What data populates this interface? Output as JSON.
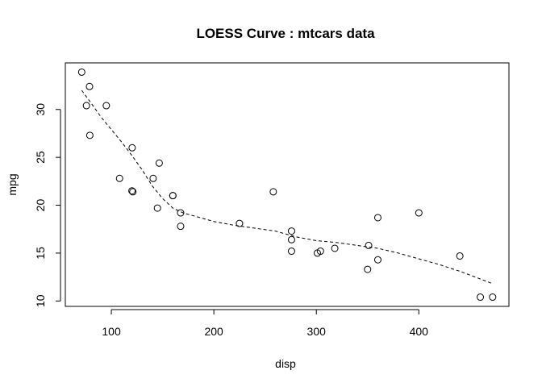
{
  "chart_data": {
    "type": "scatter",
    "title": "LOESS Curve : mtcars data",
    "xlabel": "disp",
    "ylabel": "mpg",
    "xlim": [
      55.1,
      487.9
    ],
    "ylim": [
      9.436,
      34.864
    ],
    "xticks": [
      100,
      200,
      300,
      400
    ],
    "yticks": [
      10,
      15,
      20,
      25,
      30
    ],
    "grid": false,
    "points": [
      {
        "x": 160,
        "y": 21.0
      },
      {
        "x": 160,
        "y": 21.0
      },
      {
        "x": 108,
        "y": 22.8
      },
      {
        "x": 258,
        "y": 21.4
      },
      {
        "x": 360,
        "y": 18.7
      },
      {
        "x": 225,
        "y": 18.1
      },
      {
        "x": 360,
        "y": 14.3
      },
      {
        "x": 146.7,
        "y": 24.4
      },
      {
        "x": 140.8,
        "y": 22.8
      },
      {
        "x": 167.6,
        "y": 19.2
      },
      {
        "x": 167.6,
        "y": 17.8
      },
      {
        "x": 275.8,
        "y": 16.4
      },
      {
        "x": 275.8,
        "y": 17.3
      },
      {
        "x": 275.8,
        "y": 15.2
      },
      {
        "x": 472,
        "y": 10.4
      },
      {
        "x": 460,
        "y": 10.4
      },
      {
        "x": 440,
        "y": 14.7
      },
      {
        "x": 78.7,
        "y": 32.4
      },
      {
        "x": 75.7,
        "y": 30.4
      },
      {
        "x": 71.1,
        "y": 33.9
      },
      {
        "x": 120.1,
        "y": 21.5
      },
      {
        "x": 318,
        "y": 15.5
      },
      {
        "x": 304,
        "y": 15.2
      },
      {
        "x": 350,
        "y": 13.3
      },
      {
        "x": 400,
        "y": 19.2
      },
      {
        "x": 79,
        "y": 27.3
      },
      {
        "x": 120.3,
        "y": 26.0
      },
      {
        "x": 95.1,
        "y": 30.4
      },
      {
        "x": 351,
        "y": 15.8
      },
      {
        "x": 145,
        "y": 19.7
      },
      {
        "x": 301,
        "y": 15.0
      },
      {
        "x": 121,
        "y": 21.4
      }
    ],
    "loess_curve": {
      "x": [
        71.1,
        80,
        90,
        100,
        110,
        120,
        130,
        140,
        150,
        160,
        170,
        180,
        190,
        200,
        220,
        240,
        260,
        280,
        300,
        320,
        340,
        360,
        380,
        400,
        420,
        440,
        460,
        472
      ],
      "y": [
        32.0,
        30.7,
        29.2,
        27.9,
        26.6,
        25.2,
        23.7,
        22.0,
        20.7,
        19.7,
        19.2,
        18.9,
        18.6,
        18.3,
        17.9,
        17.6,
        17.3,
        16.7,
        16.3,
        16.1,
        15.8,
        15.5,
        15.0,
        14.4,
        13.8,
        13.1,
        12.3,
        11.8
      ]
    }
  }
}
